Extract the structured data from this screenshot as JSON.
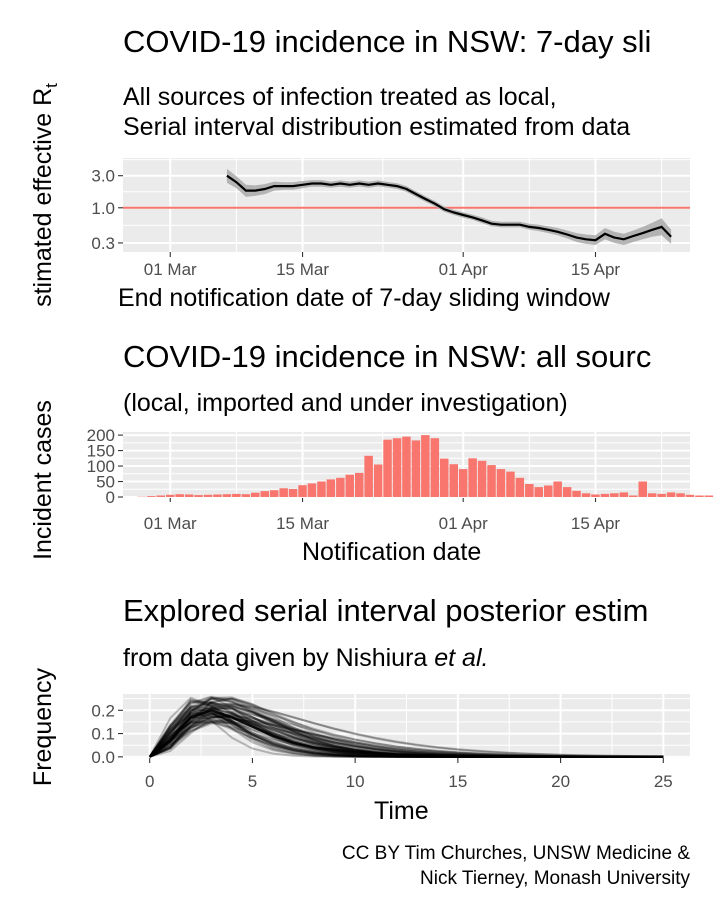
{
  "caption": {
    "line1": "CC BY Tim Churches, UNSW Medicine &",
    "line2": "Nick Tierney, Monash University"
  },
  "colors": {
    "panel_bg": "#EBEBEB",
    "grid": "#FFFFFF",
    "ref_line": "#F8766D",
    "bar_fill": "#F8766D",
    "line": "#000000",
    "ribbon": "#A9A9A9",
    "tick_text": "#4D4D4D"
  },
  "chart_data": [
    {
      "type": "line",
      "title": "COVID-19 incidence in NSW: 7-day sli",
      "subtitle_line1": "All sources of infection treated as local,",
      "subtitle_line2": "Serial interval distribution estimated from data",
      "ylabel": "stimated effective R",
      "ylabel_sub": "t",
      "xlabel": "End notification date of 7-day sliding window",
      "y_scale": "log10",
      "ylim": [
        0.22,
        5.5
      ],
      "y_ticks": [
        0.3,
        1.0,
        3.0
      ],
      "y_tick_labels": [
        "0.3",
        "1.0",
        "3.0"
      ],
      "xlim": [
        "2020-02-25",
        "2020-04-25"
      ],
      "x_ticks": [
        "2020-03-01",
        "2020-03-15",
        "2020-04-01",
        "2020-04-15"
      ],
      "x_tick_labels": [
        "01 Mar",
        "15 Mar",
        "01 Apr",
        "15 Apr"
      ],
      "reference_line": 1.0,
      "series": [
        {
          "x": [
            "2020-03-07",
            "2020-03-08",
            "2020-03-09",
            "2020-03-10",
            "2020-03-11",
            "2020-03-12",
            "2020-03-13",
            "2020-03-14",
            "2020-03-15",
            "2020-03-16",
            "2020-03-17",
            "2020-03-18",
            "2020-03-19",
            "2020-03-20",
            "2020-03-21",
            "2020-03-22",
            "2020-03-23",
            "2020-03-24",
            "2020-03-25",
            "2020-03-26",
            "2020-03-27",
            "2020-03-28",
            "2020-03-29",
            "2020-03-30",
            "2020-03-31",
            "2020-04-01",
            "2020-04-02",
            "2020-04-03",
            "2020-04-04",
            "2020-04-05",
            "2020-04-06",
            "2020-04-07",
            "2020-04-08",
            "2020-04-09",
            "2020-04-10",
            "2020-04-11",
            "2020-04-12",
            "2020-04-13",
            "2020-04-14",
            "2020-04-15",
            "2020-04-16",
            "2020-04-17",
            "2020-04-18",
            "2020-04-19",
            "2020-04-20",
            "2020-04-21",
            "2020-04-22"
          ],
          "y": [
            3.0,
            2.4,
            1.8,
            1.8,
            1.9,
            2.1,
            2.1,
            2.1,
            2.2,
            2.3,
            2.3,
            2.2,
            2.3,
            2.2,
            2.3,
            2.2,
            2.3,
            2.2,
            2.1,
            1.9,
            1.6,
            1.35,
            1.15,
            0.95,
            0.85,
            0.78,
            0.72,
            0.65,
            0.58,
            0.56,
            0.56,
            0.56,
            0.52,
            0.5,
            0.47,
            0.44,
            0.4,
            0.36,
            0.34,
            0.33,
            0.41,
            0.36,
            0.34,
            0.38,
            0.42,
            0.47,
            0.52
          ],
          "lower": [
            2.35,
            1.95,
            1.45,
            1.5,
            1.6,
            1.8,
            1.85,
            1.85,
            1.95,
            2.05,
            2.05,
            1.98,
            2.06,
            1.98,
            2.07,
            1.99,
            2.08,
            2.0,
            1.9,
            1.72,
            1.45,
            1.23,
            1.05,
            0.87,
            0.78,
            0.71,
            0.66,
            0.59,
            0.53,
            0.51,
            0.51,
            0.51,
            0.47,
            0.45,
            0.42,
            0.39,
            0.35,
            0.31,
            0.29,
            0.28,
            0.34,
            0.3,
            0.28,
            0.31,
            0.34,
            0.37,
            0.39
          ],
          "upper": [
            3.8,
            2.95,
            2.2,
            2.15,
            2.25,
            2.45,
            2.4,
            2.4,
            2.5,
            2.58,
            2.58,
            2.45,
            2.55,
            2.45,
            2.55,
            2.45,
            2.55,
            2.42,
            2.32,
            2.1,
            1.76,
            1.48,
            1.26,
            1.04,
            0.93,
            0.86,
            0.79,
            0.72,
            0.64,
            0.62,
            0.62,
            0.62,
            0.58,
            0.56,
            0.53,
            0.5,
            0.46,
            0.42,
            0.4,
            0.39,
            0.5,
            0.44,
            0.41,
            0.46,
            0.52,
            0.6,
            0.7
          ]
        }
      ],
      "line_end": {
        "x": "2020-04-23",
        "y": 0.37,
        "lower": 0.29,
        "upper": 0.47
      }
    },
    {
      "type": "bar",
      "title": "COVID-19 incidence in NSW: all sourc",
      "subtitle": "(local, imported and under investigation)",
      "ylabel": "Incident cases",
      "xlabel": "Notification date",
      "ylim": [
        0,
        210
      ],
      "y_ticks": [
        0,
        50,
        100,
        150,
        200
      ],
      "y_tick_labels": [
        "0",
        "50",
        "100",
        "150",
        "200"
      ],
      "xlim": [
        "2020-02-25",
        "2020-04-25"
      ],
      "x_ticks": [
        "2020-03-01",
        "2020-03-15",
        "2020-04-01",
        "2020-04-15"
      ],
      "x_tick_labels": [
        "01 Mar",
        "15 Mar",
        "01 Apr",
        "15 Apr"
      ],
      "start_date": "2020-02-27",
      "values": [
        1,
        3,
        5,
        7,
        9,
        8,
        6,
        7,
        8,
        9,
        10,
        9,
        14,
        19,
        22,
        28,
        26,
        38,
        44,
        50,
        57,
        62,
        72,
        78,
        133,
        105,
        185,
        190,
        195,
        183,
        200,
        190,
        124,
        106,
        90,
        125,
        117,
        103,
        90,
        82,
        62,
        42,
        32,
        37,
        50,
        32,
        20,
        12,
        8,
        10,
        12,
        15,
        5,
        50,
        12,
        10,
        15,
        12,
        7,
        5,
        5
      ]
    },
    {
      "type": "line",
      "title": "Explored serial interval posterior estim",
      "subtitle": "from data given by Nishiura",
      "subtitle_italic": "et al.",
      "ylabel": "Frequency",
      "xlabel": "Time",
      "xlim": [
        -1.3,
        26.3
      ],
      "ylim": [
        -0.005,
        0.27
      ],
      "x_ticks": [
        0,
        5,
        10,
        15,
        20,
        25
      ],
      "x_tick_labels": [
        "0",
        "5",
        "10",
        "15",
        "20",
        "25"
      ],
      "y_ticks": [
        0.0,
        0.1,
        0.2
      ],
      "y_tick_labels": [
        "0.0",
        "0.1",
        "0.2"
      ],
      "series_count": 60,
      "peak_range": [
        0.15,
        0.265
      ],
      "peak_time_range": [
        2,
        4
      ],
      "mean_curve": {
        "x": [
          0,
          1,
          2,
          3,
          4,
          5,
          6,
          7,
          8,
          10,
          12,
          15,
          20,
          25
        ],
        "y": [
          0.0,
          0.07,
          0.17,
          0.2,
          0.17,
          0.13,
          0.09,
          0.06,
          0.04,
          0.02,
          0.01,
          0.003,
          0.0005,
          0.0
        ]
      }
    }
  ]
}
